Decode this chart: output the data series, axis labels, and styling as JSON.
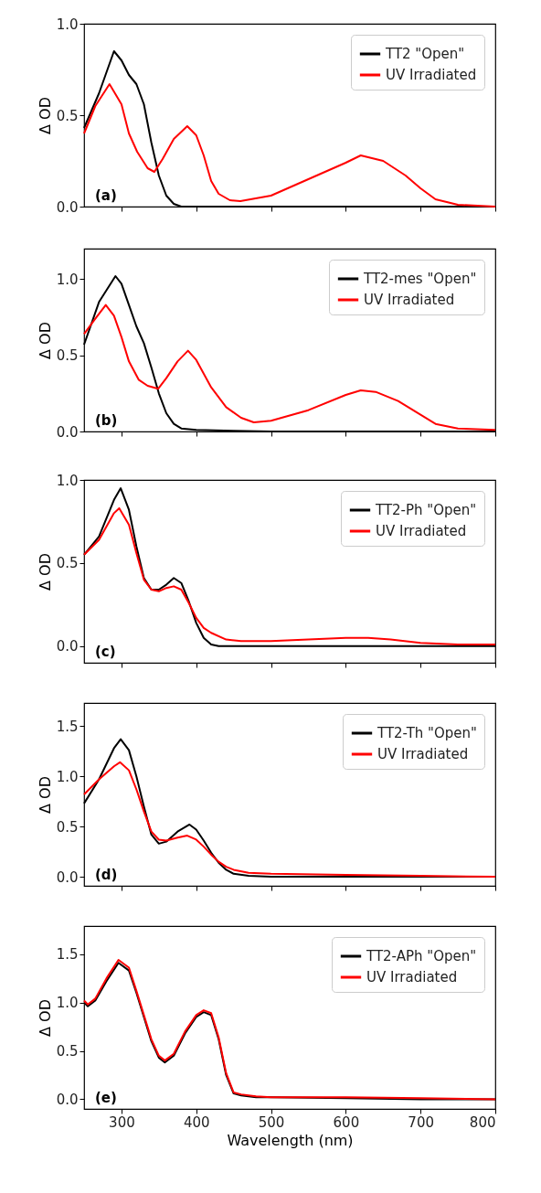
{
  "chart_data": [
    {
      "type": "line",
      "ylabel": "Δ OD",
      "xlim": [
        250,
        800
      ],
      "xticks": [
        300,
        400,
        500,
        600,
        700,
        800
      ],
      "ylim": [
        0,
        1.0
      ],
      "yticks": [
        {
          "value": 0,
          "label": "0.0"
        },
        {
          "value": 0.5,
          "label": "0.5"
        },
        {
          "value": 1.0,
          "label": "1.0"
        }
      ],
      "tick_labels": "y",
      "legend": "top right",
      "grid": false,
      "annotations": [
        "(a)"
      ],
      "series": [
        {
          "name": "TT2 \"Open\"",
          "color": "#000000",
          "x": [
            250,
            270,
            290,
            300,
            310,
            320,
            330,
            340,
            350,
            360,
            370,
            380,
            450,
            600,
            800
          ],
          "values": [
            0.43,
            0.62,
            0.85,
            0.8,
            0.72,
            0.67,
            0.56,
            0.35,
            0.17,
            0.06,
            0.015,
            0.0,
            0.0,
            0.0,
            0.0
          ]
        },
        {
          "name": "UV Irradiated",
          "color": "#ff0000",
          "x": [
            250,
            265,
            284,
            300,
            310,
            321,
            335,
            344,
            355,
            370,
            388,
            400,
            410,
            420,
            430,
            445,
            459,
            500,
            550,
            600,
            620,
            650,
            680,
            700,
            720,
            750,
            800
          ],
          "values": [
            0.4,
            0.55,
            0.67,
            0.56,
            0.4,
            0.3,
            0.21,
            0.19,
            0.26,
            0.37,
            0.44,
            0.39,
            0.28,
            0.14,
            0.07,
            0.035,
            0.03,
            0.06,
            0.15,
            0.24,
            0.28,
            0.25,
            0.17,
            0.1,
            0.04,
            0.01,
            0.0
          ]
        }
      ]
    },
    {
      "type": "line",
      "ylabel": "Δ OD",
      "xlim": [
        250,
        800
      ],
      "xticks": [
        300,
        400,
        500,
        600,
        700,
        800
      ],
      "ylim": [
        0,
        1.2
      ],
      "yticks": [
        {
          "value": 0,
          "label": "0.0"
        },
        {
          "value": 0.5,
          "label": "0.5"
        },
        {
          "value": 1.0,
          "label": "1.0"
        }
      ],
      "tick_labels": "y",
      "legend": "top right",
      "grid": false,
      "annotations": [
        "(b)"
      ],
      "series": [
        {
          "name": "TT2-mes \"Open\"",
          "color": "#000000",
          "x": [
            250,
            270,
            292,
            300,
            310,
            320,
            330,
            340,
            350,
            360,
            370,
            380,
            400,
            450,
            500,
            800
          ],
          "values": [
            0.57,
            0.85,
            1.02,
            0.97,
            0.83,
            0.69,
            0.58,
            0.42,
            0.25,
            0.12,
            0.05,
            0.02,
            0.01,
            0.005,
            0.0,
            0.0
          ]
        },
        {
          "name": "UV Irradiated",
          "color": "#ff0000",
          "x": [
            250,
            265,
            279,
            290,
            300,
            310,
            323,
            335,
            349,
            360,
            375,
            389,
            400,
            410,
            420,
            440,
            460,
            477,
            500,
            550,
            600,
            620,
            640,
            670,
            700,
            720,
            750,
            800
          ],
          "values": [
            0.64,
            0.74,
            0.83,
            0.76,
            0.62,
            0.46,
            0.34,
            0.3,
            0.28,
            0.35,
            0.46,
            0.53,
            0.47,
            0.38,
            0.29,
            0.16,
            0.09,
            0.06,
            0.07,
            0.14,
            0.24,
            0.27,
            0.26,
            0.2,
            0.11,
            0.05,
            0.02,
            0.01
          ]
        }
      ]
    },
    {
      "type": "line",
      "ylabel": "Δ OD",
      "xlim": [
        250,
        800
      ],
      "xticks": [
        300,
        400,
        500,
        600,
        700,
        800
      ],
      "ylim": [
        -0.1,
        1.0
      ],
      "yticks": [
        {
          "value": 0,
          "label": "0.0"
        },
        {
          "value": 0.5,
          "label": "0.5"
        },
        {
          "value": 1.0,
          "label": "1.0"
        }
      ],
      "tick_labels": "y",
      "legend": "top right",
      "grid": false,
      "annotations": [
        "(c)"
      ],
      "series": [
        {
          "name": "TT2-Ph \"Open\"",
          "color": "#000000",
          "x": [
            250,
            270,
            290,
            299,
            310,
            320,
            330,
            340,
            350,
            360,
            370,
            380,
            390,
            400,
            410,
            420,
            430,
            600,
            800
          ],
          "values": [
            0.55,
            0.66,
            0.88,
            0.95,
            0.82,
            0.6,
            0.41,
            0.34,
            0.34,
            0.37,
            0.41,
            0.38,
            0.27,
            0.14,
            0.05,
            0.01,
            0.0,
            0.0,
            0.0
          ]
        },
        {
          "name": "UV Irradiated",
          "color": "#ff0000",
          "x": [
            250,
            270,
            290,
            297,
            310,
            320,
            330,
            340,
            350,
            360,
            370,
            380,
            390,
            400,
            410,
            420,
            440,
            460,
            500,
            550,
            600,
            630,
            660,
            700,
            750,
            800
          ],
          "values": [
            0.55,
            0.64,
            0.8,
            0.83,
            0.73,
            0.56,
            0.4,
            0.34,
            0.33,
            0.35,
            0.36,
            0.34,
            0.26,
            0.17,
            0.11,
            0.08,
            0.04,
            0.03,
            0.03,
            0.04,
            0.05,
            0.05,
            0.04,
            0.02,
            0.01,
            0.01
          ]
        }
      ]
    },
    {
      "type": "line",
      "ylabel": "Δ OD",
      "xlim": [
        250,
        800
      ],
      "xticks": [
        300,
        400,
        500,
        600,
        700,
        800
      ],
      "ylim": [
        -0.09,
        1.73
      ],
      "yticks": [
        {
          "value": 0,
          "label": "0.0"
        },
        {
          "value": 0.5,
          "label": "0.5"
        },
        {
          "value": 1.0,
          "label": "1.0"
        },
        {
          "value": 1.5,
          "label": "1.5"
        }
      ],
      "tick_labels": "y",
      "legend": "top right",
      "grid": false,
      "annotations": [
        "(d)"
      ],
      "series": [
        {
          "name": "TT2-Th \"Open\"",
          "color": "#000000",
          "x": [
            250,
            270,
            290,
            299,
            310,
            320,
            330,
            340,
            350,
            360,
            375,
            391,
            400,
            410,
            420,
            430,
            440,
            450,
            470,
            500,
            800
          ],
          "values": [
            0.73,
            0.97,
            1.28,
            1.37,
            1.26,
            1.0,
            0.7,
            0.42,
            0.33,
            0.35,
            0.45,
            0.52,
            0.47,
            0.36,
            0.24,
            0.14,
            0.07,
            0.03,
            0.01,
            0.0,
            0.0
          ]
        },
        {
          "name": "UV Irradiated",
          "color": "#ff0000",
          "x": [
            250,
            270,
            290,
            298,
            310,
            320,
            330,
            340,
            350,
            360,
            375,
            388,
            400,
            410,
            420,
            430,
            440,
            450,
            470,
            500,
            600,
            700,
            800
          ],
          "values": [
            0.82,
            0.97,
            1.1,
            1.14,
            1.06,
            0.87,
            0.65,
            0.45,
            0.37,
            0.36,
            0.39,
            0.41,
            0.37,
            0.3,
            0.22,
            0.15,
            0.1,
            0.07,
            0.04,
            0.03,
            0.02,
            0.01,
            0.0
          ]
        }
      ]
    },
    {
      "type": "line",
      "xlabel": "Wavelength (nm)",
      "ylabel": "Δ OD",
      "xlim": [
        250,
        800
      ],
      "xticks": [
        300,
        400,
        500,
        600,
        700,
        800
      ],
      "ylim": [
        -0.1,
        1.79
      ],
      "yticks": [
        {
          "value": 0,
          "label": "0.0"
        },
        {
          "value": 0.5,
          "label": "0.5"
        },
        {
          "value": 1.0,
          "label": "1.0"
        },
        {
          "value": 1.5,
          "label": "1.5"
        }
      ],
      "legend": "top right",
      "grid": false,
      "annotations": [
        "(e)"
      ],
      "series": [
        {
          "name": "TT2-APh \"Open\"",
          "color": "#000000",
          "x": [
            250,
            255,
            265,
            280,
            296,
            310,
            320,
            330,
            340,
            350,
            358,
            370,
            385,
            400,
            410,
            420,
            430,
            440,
            450,
            460,
            480,
            500,
            600,
            700,
            800
          ],
          "values": [
            1.0,
            0.96,
            1.02,
            1.22,
            1.41,
            1.33,
            1.1,
            0.85,
            0.6,
            0.43,
            0.38,
            0.45,
            0.68,
            0.85,
            0.9,
            0.87,
            0.62,
            0.25,
            0.06,
            0.04,
            0.02,
            0.02,
            0.01,
            0.0,
            0.0
          ]
        },
        {
          "name": "UV Irradiated",
          "color": "#ff0000",
          "x": [
            250,
            255,
            265,
            280,
            296,
            310,
            320,
            330,
            340,
            350,
            358,
            370,
            385,
            400,
            410,
            420,
            430,
            440,
            450,
            460,
            480,
            500,
            600,
            700,
            800
          ],
          "values": [
            1.02,
            0.98,
            1.04,
            1.25,
            1.44,
            1.36,
            1.12,
            0.87,
            0.62,
            0.45,
            0.4,
            0.47,
            0.7,
            0.87,
            0.92,
            0.89,
            0.64,
            0.27,
            0.07,
            0.05,
            0.03,
            0.02,
            0.02,
            0.01,
            0.0
          ]
        }
      ]
    }
  ]
}
